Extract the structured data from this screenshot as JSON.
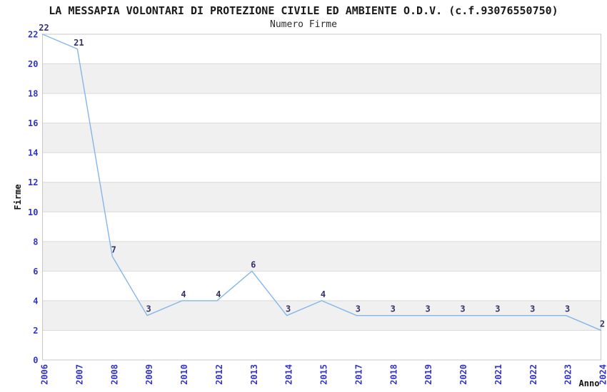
{
  "chart_data": {
    "type": "line",
    "title": "LA MESSAPIA VOLONTARI DI PROTEZIONE CIVILE ED AMBIENTE O.D.V. (c.f.93076550750)",
    "subtitle": "Numero Firme",
    "xlabel": "Anno",
    "ylabel": "Firme",
    "categories": [
      "2006",
      "2007",
      "2008",
      "2009",
      "2010",
      "2012",
      "2013",
      "2014",
      "2015",
      "2017",
      "2018",
      "2019",
      "2020",
      "2021",
      "2022",
      "2023",
      "2024"
    ],
    "values": [
      22,
      21,
      7,
      3,
      4,
      4,
      6,
      3,
      4,
      3,
      3,
      3,
      3,
      3,
      3,
      3,
      2
    ],
    "yticks": [
      0,
      2,
      4,
      6,
      8,
      10,
      12,
      14,
      16,
      18,
      20,
      22
    ],
    "ylim": [
      0,
      22
    ],
    "grid": "horizontal",
    "bands": "alternating gray every 2 units",
    "legend_position": "none",
    "value_labels_shown": true,
    "colors": {
      "line": "#85b6e9",
      "value_label": "#333366",
      "tick_label": "#3333cc",
      "axis_title": "#111111",
      "grid_line": "#d9d9d9",
      "band_gray": "#f0f0f0",
      "plot_border": "#c9c9c9",
      "background": "#ffffff"
    }
  }
}
